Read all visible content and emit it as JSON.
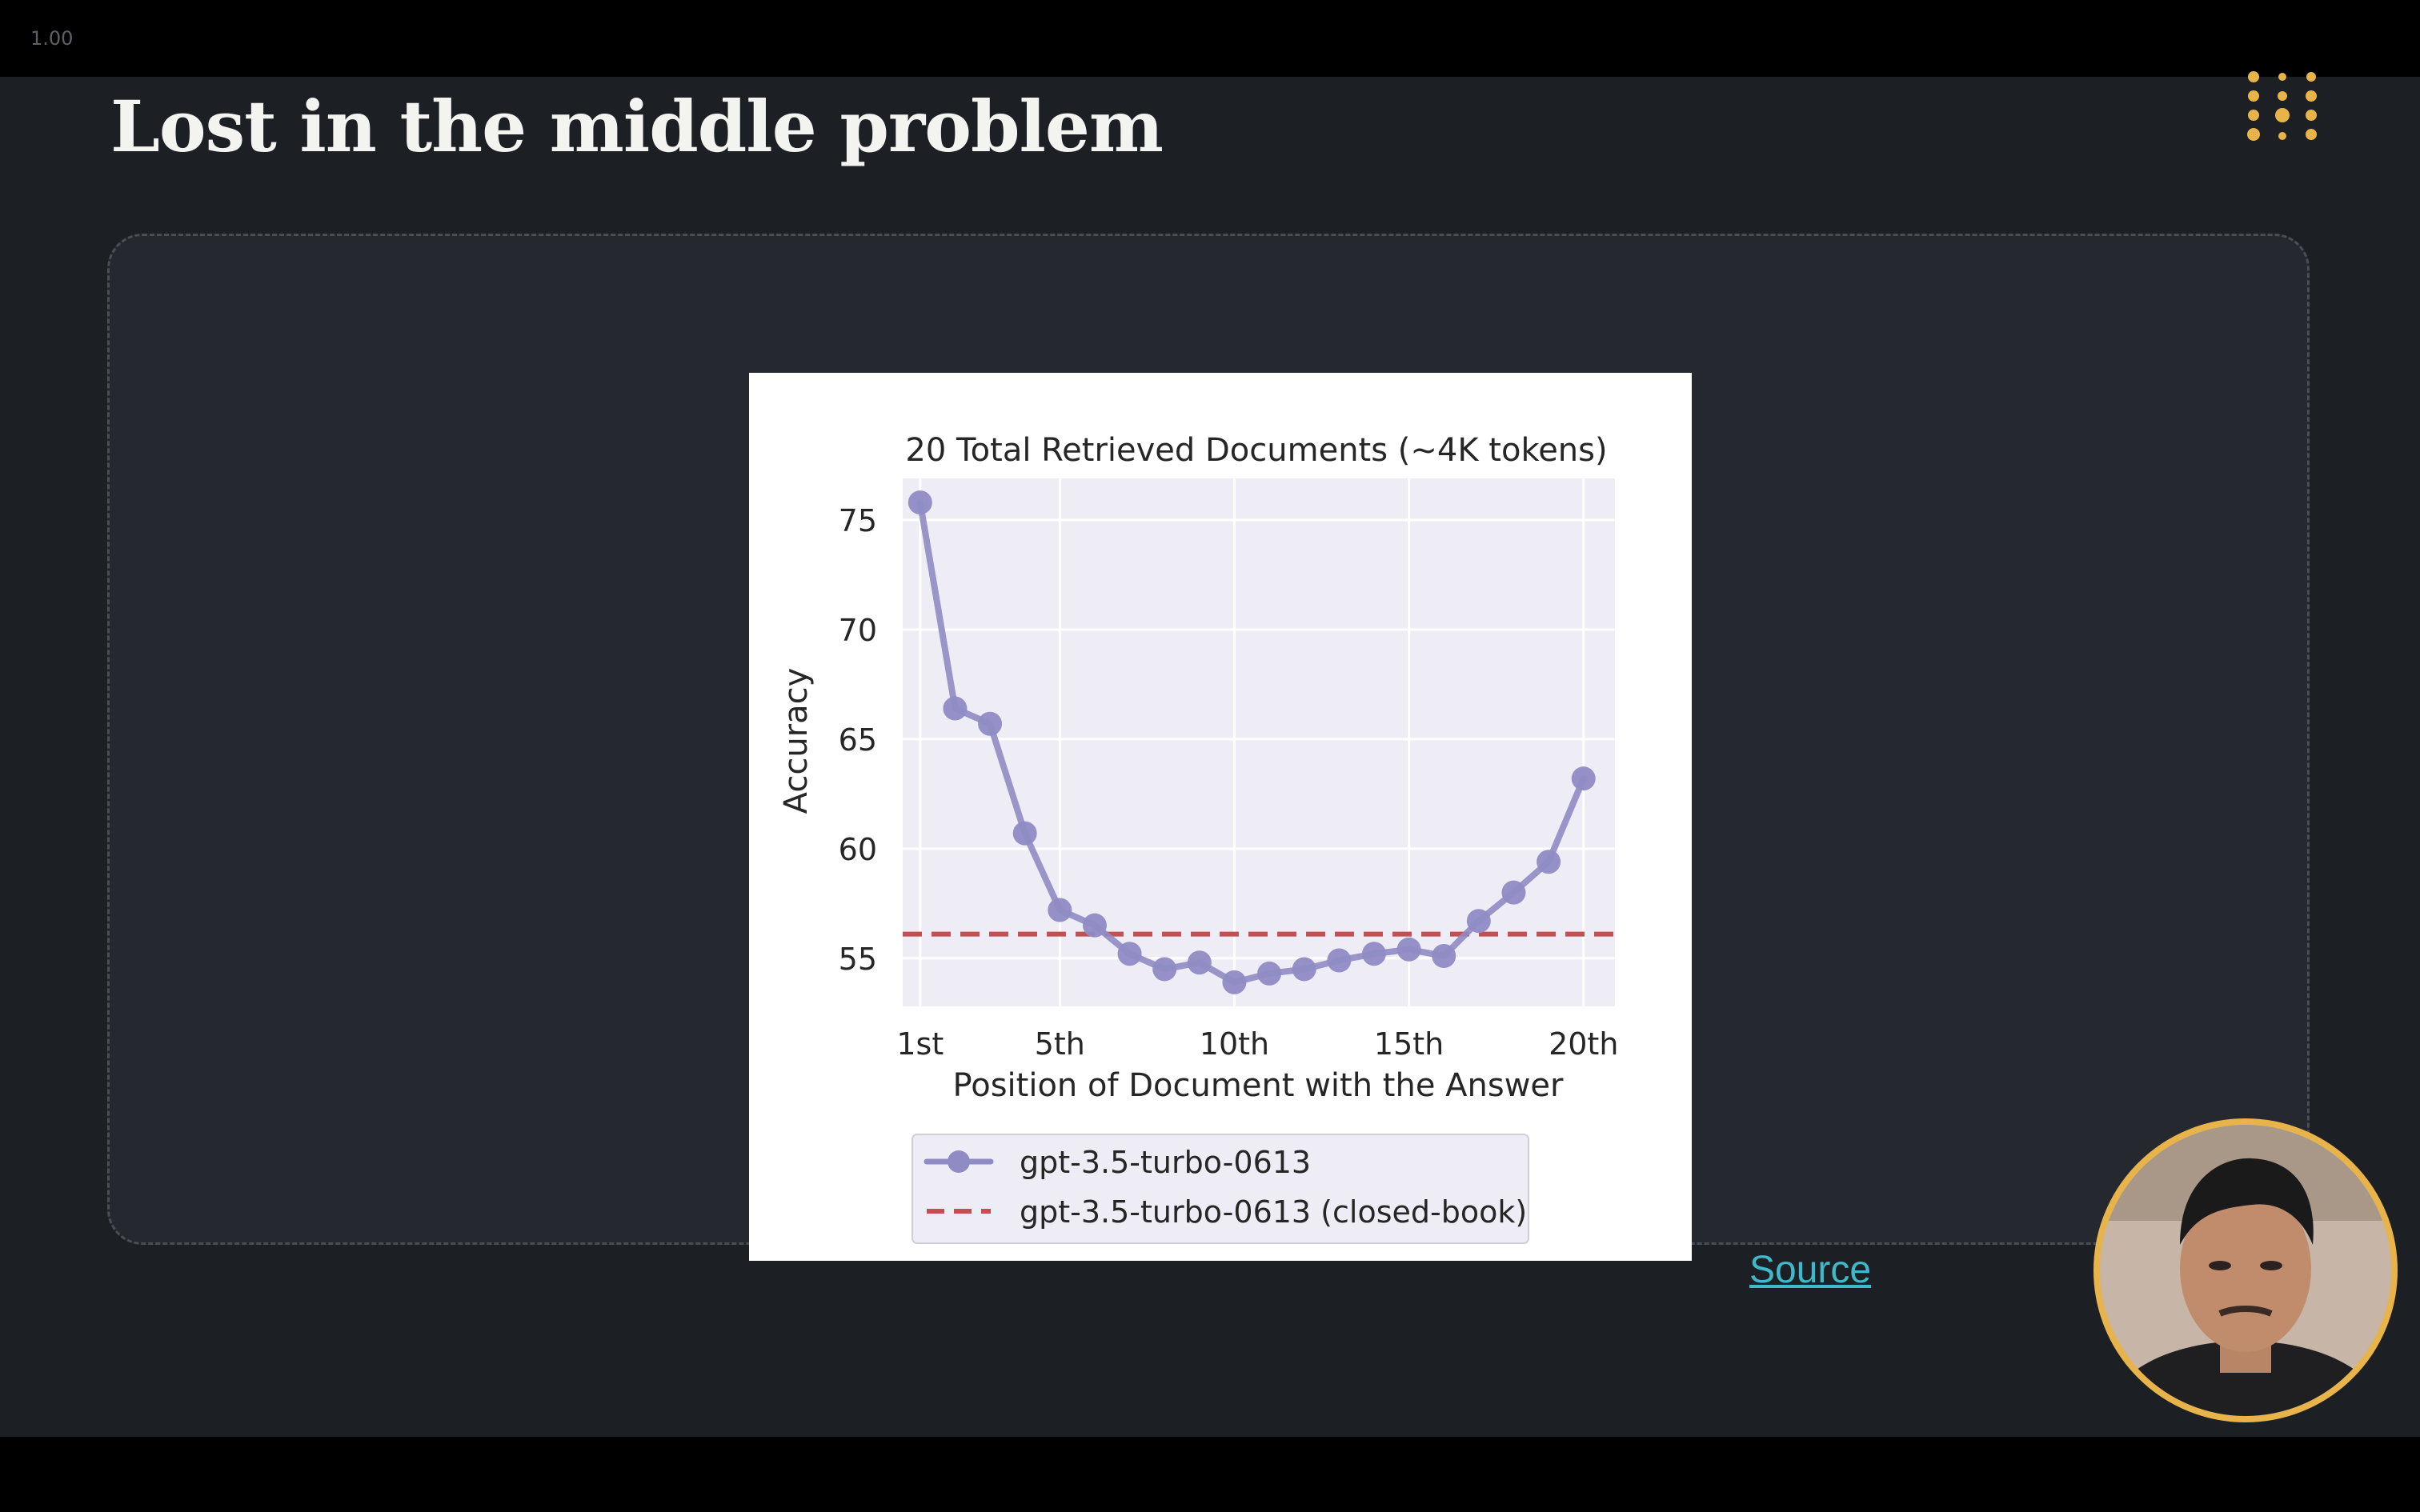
{
  "player": {
    "zoom_label": "1.00"
  },
  "slide": {
    "title": "Lost in the middle problem",
    "source_link": "Source"
  },
  "colors": {
    "background": "#1c1f24",
    "panel": "#25282e",
    "accent": "#e8b44a",
    "link": "#3fb8c9",
    "series_main": "#8f8bc4",
    "series_baseline": "#c44e52"
  },
  "icons": {
    "logo": "dot-grid-logo-icon"
  },
  "chart_data": {
    "type": "line",
    "title": "20 Total Retrieved Documents (~4K tokens)",
    "xlabel": "Position of Document with the Answer",
    "ylabel": "Accuracy",
    "x": [
      1,
      2,
      3,
      4,
      5,
      6,
      7,
      8,
      9,
      10,
      11,
      12,
      13,
      14,
      15,
      16,
      17,
      18,
      19,
      20
    ],
    "x_ticks": [
      1,
      5,
      10,
      15,
      20
    ],
    "x_tick_labels": [
      "1st",
      "5th",
      "10th",
      "15th",
      "20th"
    ],
    "y_ticks": [
      55,
      60,
      65,
      70,
      75
    ],
    "xlim": [
      0.5,
      20.9
    ],
    "ylim": [
      52.8,
      76.9
    ],
    "grid": true,
    "legend_position": "bottom-outside",
    "series": [
      {
        "name": "gpt-3.5-turbo-0613",
        "style": "line-marker",
        "color": "#8f8bc4",
        "values": [
          75.8,
          66.4,
          65.7,
          60.7,
          57.2,
          56.5,
          55.2,
          54.5,
          54.8,
          53.9,
          54.3,
          54.5,
          54.9,
          55.2,
          55.4,
          55.1,
          56.7,
          58.0,
          59.4,
          63.2
        ]
      },
      {
        "name": "gpt-3.5-turbo-0613 (closed-book)",
        "style": "dashed",
        "color": "#c44e52",
        "value": 56.1
      }
    ]
  }
}
